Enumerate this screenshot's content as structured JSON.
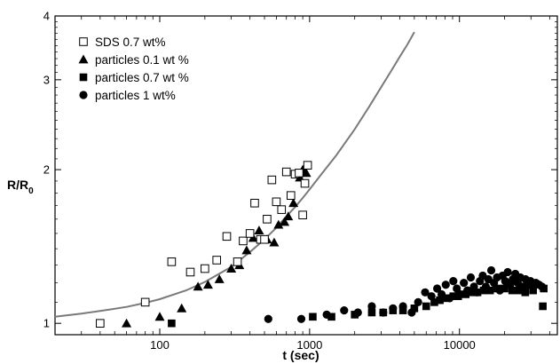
{
  "chart_data": {
    "type": "scatter",
    "xscale": "log",
    "yscale": "log",
    "xlim": [
      20,
      45000
    ],
    "ylim": [
      0.95,
      4
    ],
    "xlabel": "t (sec)",
    "ylabel_main": "R/R",
    "ylabel_sub": "0",
    "xticks": [
      {
        "value": 100,
        "label": "100"
      },
      {
        "value": 1000,
        "label": "1000"
      },
      {
        "value": 10000,
        "label": "10000"
      }
    ],
    "yticks": [
      {
        "value": 1,
        "label": "1"
      },
      {
        "value": 2,
        "label": "2"
      },
      {
        "value": 3,
        "label": "3"
      },
      {
        "value": 4,
        "label": "4"
      }
    ],
    "grid": false,
    "legend_position": "top-left",
    "fit_curve": {
      "color": "#7a7a7a",
      "x": [
        20,
        30,
        40,
        60,
        80,
        100,
        150,
        200,
        300,
        400,
        500,
        600,
        700,
        800,
        900,
        1000,
        1200,
        1500,
        2000,
        2500,
        3000,
        3500,
        4000,
        4500,
        5000
      ],
      "y": [
        1.03,
        1.045,
        1.057,
        1.077,
        1.097,
        1.115,
        1.16,
        1.205,
        1.29,
        1.38,
        1.46,
        1.54,
        1.62,
        1.69,
        1.76,
        1.83,
        1.96,
        2.13,
        2.4,
        2.66,
        2.9,
        3.12,
        3.33,
        3.52,
        3.72
      ]
    },
    "series": [
      {
        "name": "SDS 0.7 wt%",
        "marker": "open-square",
        "points": [
          [
            40,
            1.0
          ],
          [
            80,
            1.1
          ],
          [
            120,
            1.32
          ],
          [
            160,
            1.26
          ],
          [
            200,
            1.28
          ],
          [
            240,
            1.33
          ],
          [
            280,
            1.48
          ],
          [
            330,
            1.32
          ],
          [
            360,
            1.45
          ],
          [
            400,
            1.5
          ],
          [
            430,
            1.72
          ],
          [
            470,
            1.46
          ],
          [
            500,
            1.46
          ],
          [
            520,
            1.6
          ],
          [
            560,
            1.91
          ],
          [
            600,
            1.73
          ],
          [
            650,
            1.67
          ],
          [
            700,
            1.98
          ],
          [
            750,
            1.78
          ],
          [
            800,
            1.96
          ],
          [
            850,
            1.97
          ],
          [
            900,
            1.63
          ],
          [
            930,
            1.88
          ],
          [
            970,
            2.04
          ]
        ]
      },
      {
        "name": "particles 0.1 wt %",
        "marker": "filled-triangle",
        "points": [
          [
            60,
            1.0
          ],
          [
            100,
            1.03
          ],
          [
            140,
            1.07
          ],
          [
            180,
            1.18
          ],
          [
            210,
            1.19
          ],
          [
            250,
            1.22
          ],
          [
            300,
            1.28
          ],
          [
            340,
            1.3
          ],
          [
            380,
            1.39
          ],
          [
            420,
            1.47
          ],
          [
            460,
            1.52
          ],
          [
            520,
            1.46
          ],
          [
            580,
            1.44
          ],
          [
            620,
            1.56
          ],
          [
            680,
            1.58
          ],
          [
            720,
            1.62
          ],
          [
            780,
            1.72
          ],
          [
            860,
            1.93
          ],
          [
            900,
            2.0
          ],
          [
            950,
            1.97
          ]
        ]
      },
      {
        "name": "particles 0.7 wt %",
        "marker": "filled-square",
        "points": [
          [
            120,
            1.0
          ],
          [
            1050,
            1.03
          ],
          [
            1400,
            1.03
          ],
          [
            2000,
            1.04
          ],
          [
            2600,
            1.05
          ],
          [
            3100,
            1.05
          ],
          [
            3600,
            1.06
          ],
          [
            4200,
            1.06
          ],
          [
            5000,
            1.07
          ],
          [
            6000,
            1.08
          ],
          [
            6800,
            1.1
          ],
          [
            7400,
            1.11
          ],
          [
            8200,
            1.12
          ],
          [
            9100,
            1.13
          ],
          [
            9800,
            1.13
          ],
          [
            11000,
            1.14
          ],
          [
            12000,
            1.15
          ],
          [
            13200,
            1.15
          ],
          [
            14500,
            1.16
          ],
          [
            16000,
            1.16
          ],
          [
            18000,
            1.17
          ],
          [
            20000,
            1.17
          ],
          [
            22500,
            1.16
          ],
          [
            25000,
            1.16
          ],
          [
            27500,
            1.15
          ],
          [
            31000,
            1.16
          ],
          [
            36000,
            1.08
          ],
          [
            36500,
            1.17
          ]
        ]
      },
      {
        "name": "particles 1 wt%",
        "marker": "filled-circle",
        "points": [
          [
            530,
            1.02
          ],
          [
            880,
            1.02
          ],
          [
            1300,
            1.04
          ],
          [
            1700,
            1.06
          ],
          [
            2100,
            1.05
          ],
          [
            2600,
            1.08
          ],
          [
            3100,
            1.05
          ],
          [
            3600,
            1.07
          ],
          [
            4200,
            1.08
          ],
          [
            4800,
            1.05
          ],
          [
            5300,
            1.1
          ],
          [
            5900,
            1.15
          ],
          [
            6500,
            1.13
          ],
          [
            7100,
            1.17
          ],
          [
            7600,
            1.14
          ],
          [
            8100,
            1.19
          ],
          [
            8600,
            1.12
          ],
          [
            9100,
            1.21
          ],
          [
            9600,
            1.17
          ],
          [
            10100,
            1.14
          ],
          [
            10700,
            1.2
          ],
          [
            11300,
            1.16
          ],
          [
            11900,
            1.23
          ],
          [
            12500,
            1.18
          ],
          [
            13100,
            1.15
          ],
          [
            13700,
            1.21
          ],
          [
            14300,
            1.24
          ],
          [
            15000,
            1.18
          ],
          [
            15600,
            1.22
          ],
          [
            16300,
            1.27
          ],
          [
            17000,
            1.2
          ],
          [
            17800,
            1.23
          ],
          [
            18600,
            1.16
          ],
          [
            19400,
            1.24
          ],
          [
            20200,
            1.21
          ],
          [
            21000,
            1.26
          ],
          [
            21800,
            1.19
          ],
          [
            22700,
            1.22
          ],
          [
            23600,
            1.25
          ],
          [
            24500,
            1.2
          ],
          [
            25500,
            1.23
          ],
          [
            26500,
            1.18
          ],
          [
            27600,
            1.22
          ],
          [
            28700,
            1.19
          ],
          [
            29800,
            1.21
          ],
          [
            31000,
            1.18
          ],
          [
            32400,
            1.2
          ],
          [
            34000,
            1.19
          ],
          [
            35500,
            1.18
          ]
        ]
      }
    ]
  }
}
